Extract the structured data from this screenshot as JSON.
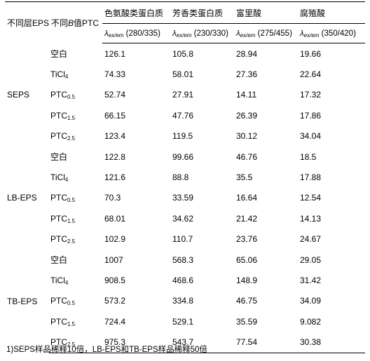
{
  "header": {
    "col_layer": "不同层EPS",
    "col_treatment_prefix": "不同",
    "col_treatment_b": "B",
    "col_treatment_suffix": "值PTC",
    "components": [
      {
        "name": "色氨酸类蛋白质",
        "lambda": "λ",
        "sub": "ex/em",
        "wl": " (280/335)"
      },
      {
        "name": "芳香类蛋白质",
        "lambda": "λ",
        "sub": "ex/em",
        "wl": " (230/330)"
      },
      {
        "name": "富里酸",
        "lambda": "λ",
        "sub": "ex/em",
        "wl": " (275/455)"
      },
      {
        "name": "腐殖酸",
        "lambda": "λ",
        "sub": "ex/em",
        "wl": " (350/420)"
      }
    ]
  },
  "groups": [
    {
      "name": "SEPS",
      "rows": [
        {
          "t": "空白",
          "s": "",
          "v": [
            "126.1",
            "105.8",
            "28.94",
            "19.66"
          ]
        },
        {
          "t": "TiCl",
          "s": "4",
          "v": [
            "74.33",
            "58.01",
            "27.36",
            "22.64"
          ]
        },
        {
          "t": "PTC",
          "s": "0.5",
          "v": [
            "52.74",
            "27.91",
            "14.11",
            "17.32"
          ]
        },
        {
          "t": "PTC",
          "s": "1.5",
          "v": [
            "66.15",
            "47.76",
            "26.39",
            "17.86"
          ]
        },
        {
          "t": "PTC",
          "s": "2.5",
          "v": [
            "123.4",
            "119.5",
            "30.12",
            "34.04"
          ]
        }
      ]
    },
    {
      "name": "LB-EPS",
      "rows": [
        {
          "t": "空白",
          "s": "",
          "v": [
            "122.8",
            "99.66",
            "46.76",
            "18.5"
          ]
        },
        {
          "t": "TiCl",
          "s": "4",
          "v": [
            "121.6",
            "88.8",
            "35.5",
            "17.88"
          ]
        },
        {
          "t": "PTC",
          "s": "0.5",
          "v": [
            "70.3",
            "33.59",
            "16.64",
            "12.54"
          ]
        },
        {
          "t": "PTC",
          "s": "1.5",
          "v": [
            "68.01",
            "34.62",
            "21.42",
            "14.13"
          ]
        },
        {
          "t": "PTC",
          "s": "2.5",
          "v": [
            "102.9",
            "110.7",
            "23.76",
            "24.67"
          ]
        }
      ]
    },
    {
      "name": "TB-EPS",
      "rows": [
        {
          "t": "空白",
          "s": "",
          "v": [
            "1007",
            "568.3",
            "65.06",
            "29.05"
          ]
        },
        {
          "t": "TiCl",
          "s": "4",
          "v": [
            "908.5",
            "468.6",
            "148.9",
            "31.42"
          ]
        },
        {
          "t": "PTC",
          "s": "0.5",
          "v": [
            "573.2",
            "334.8",
            "46.75",
            "34.09"
          ]
        },
        {
          "t": "PTC",
          "s": "1.5",
          "v": [
            "724.4",
            "529.1",
            "35.59",
            "9.082"
          ]
        },
        {
          "t": "PTC",
          "s": "2.5",
          "v": [
            "975.3",
            "543.7",
            "77.54",
            "30.38"
          ]
        }
      ]
    }
  ],
  "note": "1)SEPS样品稀释10倍，LB-EPS和TB-EPS样品稀释50倍"
}
